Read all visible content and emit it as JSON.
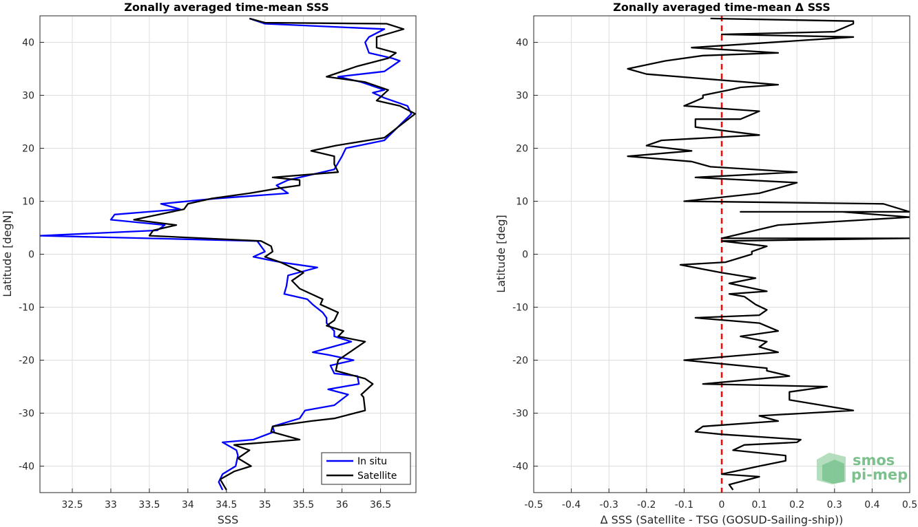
{
  "chart_data": [
    {
      "type": "line",
      "title": "Zonally averaged time-mean SSS",
      "xlabel": "SSS",
      "ylabel": "Latitude [degN]",
      "xlim": [
        32.08,
        36.96
      ],
      "ylim": [
        -45,
        45
      ],
      "xticks": [
        32.5,
        33,
        33.5,
        34,
        34.5,
        35,
        35.5,
        36,
        36.5
      ],
      "yticks": [
        -40,
        -30,
        -20,
        -10,
        0,
        10,
        20,
        30,
        40
      ],
      "grid": true,
      "legend": "bottom-right",
      "series": [
        {
          "name": "In situ",
          "color": "#0000ff",
          "points": [
            [
              34.45,
              -44.5
            ],
            [
              34.4,
              -43
            ],
            [
              34.45,
              -41.5
            ],
            [
              34.62,
              -40
            ],
            [
              34.65,
              -38
            ],
            [
              34.63,
              -37
            ],
            [
              34.45,
              -35.5
            ],
            [
              34.85,
              -35
            ],
            [
              35.12,
              -33.5
            ],
            [
              35.1,
              -32.5
            ],
            [
              35.45,
              -31
            ],
            [
              35.52,
              -29.5
            ],
            [
              35.9,
              -28.5
            ],
            [
              36.08,
              -26.5
            ],
            [
              35.82,
              -25.5
            ],
            [
              36.22,
              -24.5
            ],
            [
              36.2,
              -23
            ],
            [
              35.9,
              -22.5
            ],
            [
              35.85,
              -21
            ],
            [
              36.15,
              -20
            ],
            [
              35.82,
              -19
            ],
            [
              35.62,
              -18.5
            ],
            [
              36.12,
              -16.5
            ],
            [
              35.9,
              -15.5
            ],
            [
              35.9,
              -14.5
            ],
            [
              35.8,
              -13
            ],
            [
              35.8,
              -12
            ],
            [
              35.75,
              -11
            ],
            [
              35.62,
              -9.5
            ],
            [
              35.55,
              -8.5
            ],
            [
              35.25,
              -7.5
            ],
            [
              35.28,
              -6
            ],
            [
              35.3,
              -4
            ],
            [
              35.68,
              -2.5
            ],
            [
              35.2,
              -1.5
            ],
            [
              34.85,
              -0.5
            ],
            [
              35.0,
              0.5
            ],
            [
              34.95,
              1.5
            ],
            [
              34.9,
              2.5
            ],
            [
              32.08,
              3.5
            ],
            [
              33.6,
              4.5
            ],
            [
              33.7,
              5.5
            ],
            [
              33.0,
              6.5
            ],
            [
              33.05,
              7.5
            ],
            [
              33.9,
              8.5
            ],
            [
              33.65,
              9.5
            ],
            [
              34.35,
              10.5
            ],
            [
              35.3,
              11.5
            ],
            [
              35.15,
              13
            ],
            [
              35.3,
              14
            ],
            [
              35.9,
              16
            ],
            [
              36.0,
              18.5
            ],
            [
              36.05,
              20
            ],
            [
              36.55,
              21.5
            ],
            [
              36.9,
              26.5
            ],
            [
              36.85,
              28
            ],
            [
              36.55,
              29.5
            ],
            [
              36.4,
              30.5
            ],
            [
              36.55,
              31
            ],
            [
              36.25,
              32.5
            ],
            [
              35.95,
              33.5
            ],
            [
              36.55,
              34.5
            ],
            [
              36.75,
              36.5
            ],
            [
              36.65,
              37
            ],
            [
              36.35,
              38
            ],
            [
              36.3,
              40
            ],
            [
              36.35,
              41
            ],
            [
              36.55,
              42.5
            ],
            [
              35.0,
              43.5
            ],
            [
              34.8,
              44.5
            ]
          ]
        },
        {
          "name": "Satellite",
          "color": "#000000",
          "points": [
            [
              34.5,
              -44.5
            ],
            [
              34.42,
              -42.5
            ],
            [
              34.6,
              -41
            ],
            [
              34.82,
              -40
            ],
            [
              34.65,
              -38.5
            ],
            [
              34.8,
              -37
            ],
            [
              34.6,
              -36
            ],
            [
              35.45,
              -35
            ],
            [
              35.08,
              -33.5
            ],
            [
              35.1,
              -32.5
            ],
            [
              35.6,
              -31.5
            ],
            [
              35.9,
              -31
            ],
            [
              36.3,
              -29.5
            ],
            [
              36.28,
              -27
            ],
            [
              36.25,
              -26.5
            ],
            [
              36.4,
              -24.5
            ],
            [
              36.3,
              -23.5
            ],
            [
              35.92,
              -22
            ],
            [
              35.95,
              -20
            ],
            [
              36.3,
              -16.5
            ],
            [
              35.95,
              -15.5
            ],
            [
              36.02,
              -14.5
            ],
            [
              35.8,
              -13.5
            ],
            [
              35.9,
              -12.5
            ],
            [
              35.95,
              -11
            ],
            [
              35.72,
              -9.5
            ],
            [
              35.75,
              -8.5
            ],
            [
              35.45,
              -6.5
            ],
            [
              35.35,
              -5
            ],
            [
              35.5,
              -3.5
            ],
            [
              35.2,
              -1.5
            ],
            [
              35.0,
              -0.5
            ],
            [
              35.1,
              0.5
            ],
            [
              35.08,
              1.5
            ],
            [
              34.95,
              2.5
            ],
            [
              33.5,
              3.5
            ],
            [
              33.55,
              4.5
            ],
            [
              33.85,
              5.5
            ],
            [
              33.3,
              6.5
            ],
            [
              33.95,
              8.5
            ],
            [
              34.0,
              9.5
            ],
            [
              34.3,
              10.5
            ],
            [
              34.8,
              11.5
            ],
            [
              35.2,
              12.5
            ],
            [
              35.45,
              13
            ],
            [
              35.45,
              14
            ],
            [
              35.1,
              14.5
            ],
            [
              35.95,
              15.5
            ],
            [
              35.9,
              17
            ],
            [
              35.9,
              18.5
            ],
            [
              35.6,
              19.5
            ],
            [
              35.92,
              20.5
            ],
            [
              36.55,
              22
            ],
            [
              36.95,
              26.5
            ],
            [
              36.75,
              28
            ],
            [
              36.45,
              29
            ],
            [
              36.6,
              31
            ],
            [
              36.3,
              32.5
            ],
            [
              35.8,
              33.5
            ],
            [
              36.2,
              35.5
            ],
            [
              36.6,
              37
            ],
            [
              36.7,
              38
            ],
            [
              36.45,
              39
            ],
            [
              36.45,
              41
            ],
            [
              36.8,
              42.5
            ],
            [
              36.58,
              43.5
            ],
            [
              35.0,
              43.7
            ],
            [
              34.8,
              44.5
            ]
          ]
        }
      ]
    },
    {
      "type": "line",
      "title": "Zonally averaged time-mean Δ SSS",
      "xlabel": "Δ SSS (Satellite - TSG (GOSUD-Sailing-ship))",
      "ylabel": "Latitude [deg]",
      "xlim": [
        -0.5,
        0.5
      ],
      "ylim": [
        -45,
        45
      ],
      "xticks": [
        -0.5,
        -0.4,
        -0.3,
        -0.2,
        -0.1,
        0,
        0.1,
        0.2,
        0.3,
        0.4,
        0.5
      ],
      "yticks": [
        -40,
        -30,
        -20,
        -10,
        0,
        10,
        20,
        30,
        40
      ],
      "grid": true,
      "zero_line_color": "#ff0000",
      "series": [
        {
          "color": "#000000",
          "points": [
            [
              0.03,
              -44.5
            ],
            [
              0.02,
              -43.5
            ],
            [
              0.1,
              -42
            ],
            [
              0.0,
              -41.5
            ],
            [
              0.1,
              -40
            ],
            [
              0.17,
              -39
            ],
            [
              0.17,
              -38
            ],
            [
              0.03,
              -37
            ],
            [
              0.06,
              -36
            ],
            [
              0.2,
              -35.5
            ],
            [
              0.21,
              -35
            ],
            [
              0.0,
              -34
            ],
            [
              -0.07,
              -33.5
            ],
            [
              -0.05,
              -32.5
            ],
            [
              0.15,
              -31.5
            ],
            [
              0.1,
              -30.5
            ],
            [
              0.35,
              -29.5
            ],
            [
              0.18,
              -27.5
            ],
            [
              0.18,
              -26
            ],
            [
              0.28,
              -25
            ],
            [
              -0.05,
              -24.5
            ],
            [
              0.18,
              -23
            ],
            [
              0.12,
              -22
            ],
            [
              0.12,
              -21.5
            ],
            [
              -0.1,
              -20
            ],
            [
              0.15,
              -18.5
            ],
            [
              0.1,
              -17.5
            ],
            [
              0.12,
              -16.5
            ],
            [
              0.05,
              -15.5
            ],
            [
              0.15,
              -14.5
            ],
            [
              0.1,
              -13
            ],
            [
              -0.07,
              -12
            ],
            [
              0.1,
              -11.5
            ],
            [
              0.12,
              -10.5
            ],
            [
              0.09,
              -9.5
            ],
            [
              0.06,
              -8
            ],
            [
              0.02,
              -7.5
            ],
            [
              0.12,
              -7
            ],
            [
              0.02,
              -5.5
            ],
            [
              0.09,
              -4.5
            ],
            [
              0.0,
              -3.5
            ],
            [
              -0.11,
              -2
            ],
            [
              0.01,
              -1.5
            ],
            [
              0.08,
              0
            ],
            [
              0.08,
              0.5
            ],
            [
              0.12,
              1.5
            ],
            [
              0.0,
              2.5
            ],
            [
              0.5,
              3
            ],
            [
              0.0,
              3
            ],
            [
              0.15,
              5.5
            ],
            [
              0.5,
              7
            ],
            [
              0.32,
              8
            ],
            [
              0.05,
              8
            ],
            [
              0.5,
              8
            ],
            [
              0.43,
              9.5
            ],
            [
              -0.1,
              10
            ],
            [
              0.1,
              11.5
            ],
            [
              0.15,
              12.5
            ],
            [
              0.2,
              13.5
            ],
            [
              -0.07,
              14.5
            ],
            [
              0.2,
              15.5
            ],
            [
              -0.03,
              16.5
            ],
            [
              -0.08,
              17.5
            ],
            [
              -0.25,
              18.5
            ],
            [
              -0.08,
              19.5
            ],
            [
              -0.2,
              20.5
            ],
            [
              -0.16,
              21.5
            ],
            [
              0.1,
              22.5
            ],
            [
              -0.07,
              24
            ],
            [
              -0.07,
              25.5
            ],
            [
              0.05,
              25.5
            ],
            [
              0.1,
              27
            ],
            [
              -0.1,
              28
            ],
            [
              -0.05,
              29.5
            ],
            [
              -0.05,
              30
            ],
            [
              0.02,
              31
            ],
            [
              0.05,
              31.5
            ],
            [
              0.15,
              32
            ],
            [
              -0.2,
              34
            ],
            [
              -0.25,
              35
            ],
            [
              -0.15,
              36.5
            ],
            [
              -0.05,
              37.5
            ],
            [
              0.15,
              38
            ],
            [
              -0.08,
              39
            ],
            [
              0.35,
              41
            ],
            [
              0.0,
              41.5
            ],
            [
              0.3,
              42
            ],
            [
              0.35,
              43.5
            ],
            [
              0.35,
              44
            ],
            [
              -0.03,
              44.5
            ]
          ]
        }
      ]
    }
  ],
  "legend": {
    "entries": [
      "In situ",
      "Satellite"
    ]
  },
  "logo": {
    "line1": "smos",
    "line2": "pi-mep"
  }
}
